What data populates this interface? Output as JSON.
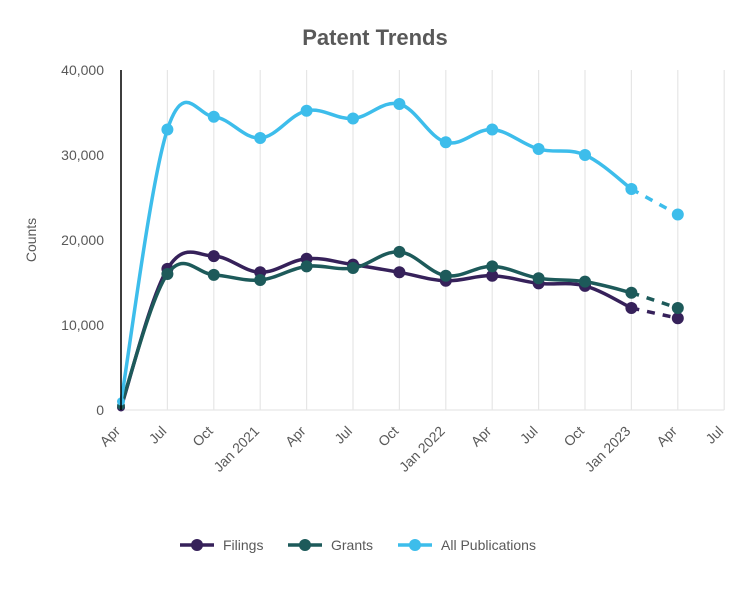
{
  "chart_data": {
    "type": "line",
    "title": "Patent Trends",
    "xlabel": "",
    "ylabel": "Counts",
    "ylim": [
      0,
      40000
    ],
    "yticks": [
      0,
      10000,
      20000,
      30000,
      40000
    ],
    "ytick_labels": [
      "0",
      "10,000",
      "20,000",
      "30,000",
      "40,000"
    ],
    "x_tick_labels": [
      "Apr",
      "Jul",
      "Oct",
      "Jan 2021",
      "Apr",
      "Jul",
      "Oct",
      "Jan 2022",
      "Apr",
      "Jul",
      "Oct",
      "Jan 2023",
      "Apr",
      "Jul"
    ],
    "x": [
      "2020-04",
      "2020-07",
      "2020-10",
      "2021-01",
      "2021-04",
      "2021-07",
      "2021-10",
      "2022-01",
      "2022-04",
      "2022-07",
      "2022-10",
      "2023-01",
      "2023-04"
    ],
    "grid": "vertical",
    "legend_position": "bottom",
    "projected_from_index": 11,
    "series": [
      {
        "name": "Filings",
        "color": "#36215a",
        "values": [
          300,
          16600,
          18100,
          16200,
          17800,
          17100,
          16200,
          15200,
          15800,
          14900,
          14600,
          12000,
          10800
        ]
      },
      {
        "name": "Grants",
        "color": "#1d5a5a",
        "values": [
          500,
          16000,
          15900,
          15300,
          16900,
          16700,
          18600,
          15800,
          16900,
          15500,
          15100,
          13800,
          12000
        ]
      },
      {
        "name": "All Publications",
        "color": "#3dbdeb",
        "values": [
          1000,
          33000,
          34500,
          32000,
          35200,
          34300,
          36000,
          31500,
          33000,
          30700,
          30000,
          26000,
          23000
        ]
      }
    ]
  }
}
